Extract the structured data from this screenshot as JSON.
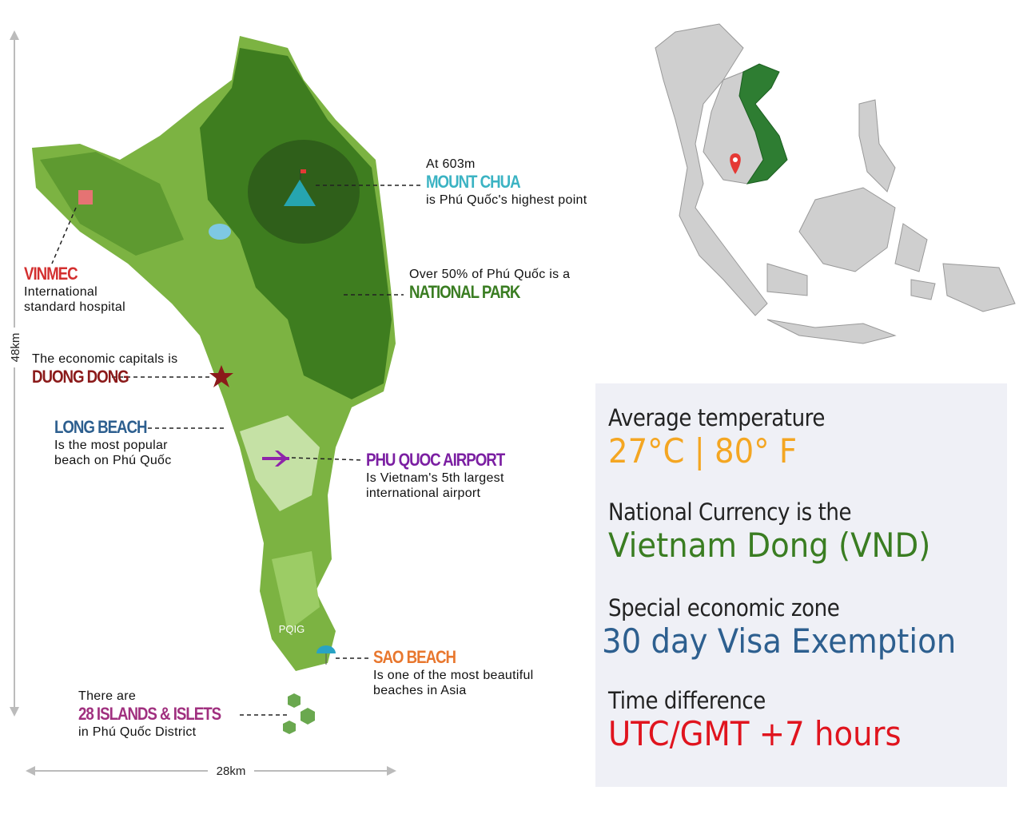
{
  "dimensions": {
    "height": "48km",
    "width": "28km"
  },
  "map_label": "PQIG",
  "callouts": [
    {
      "lead": [
        "At 603m"
      ],
      "name": "MOUNT CHUA",
      "desc": [
        "is Phú Quốc's highest point"
      ]
    },
    {
      "lead": [
        "Over 50% of Phú Quốc is a"
      ],
      "name": "NATIONAL PARK",
      "desc": []
    },
    {
      "lead": [],
      "name": "VINMEC",
      "desc": [
        "International",
        "standard hospital"
      ]
    },
    {
      "lead": [
        "The economic capitals is"
      ],
      "name": "DUONG DONG",
      "desc": []
    },
    {
      "lead": [],
      "name": "LONG BEACH",
      "desc": [
        "Is the most popular",
        "beach on Phú Quốc"
      ]
    },
    {
      "lead": [],
      "name": "PHU QUOC AIRPORT",
      "desc": [
        "Is Vietnam's 5th largest",
        "international airport"
      ]
    },
    {
      "lead": [],
      "name": "SAO BEACH",
      "desc": [
        "Is one of the most beautiful",
        "beaches in Asia"
      ]
    },
    {
      "lead": [
        "There are"
      ],
      "name": "28 ISLANDS & ISLETS",
      "desc": [
        "in Phú Quốc District"
      ]
    }
  ],
  "facts": [
    {
      "label": "Average temperature",
      "value": "27°C | 80° F"
    },
    {
      "label": "National Currency is the",
      "value": "Vietnam Dong (VND)"
    },
    {
      "label": "Special economic zone",
      "value": "30 day Visa Exemption"
    },
    {
      "label": "Time difference",
      "value": "UTC/GMT +7 hours"
    }
  ]
}
